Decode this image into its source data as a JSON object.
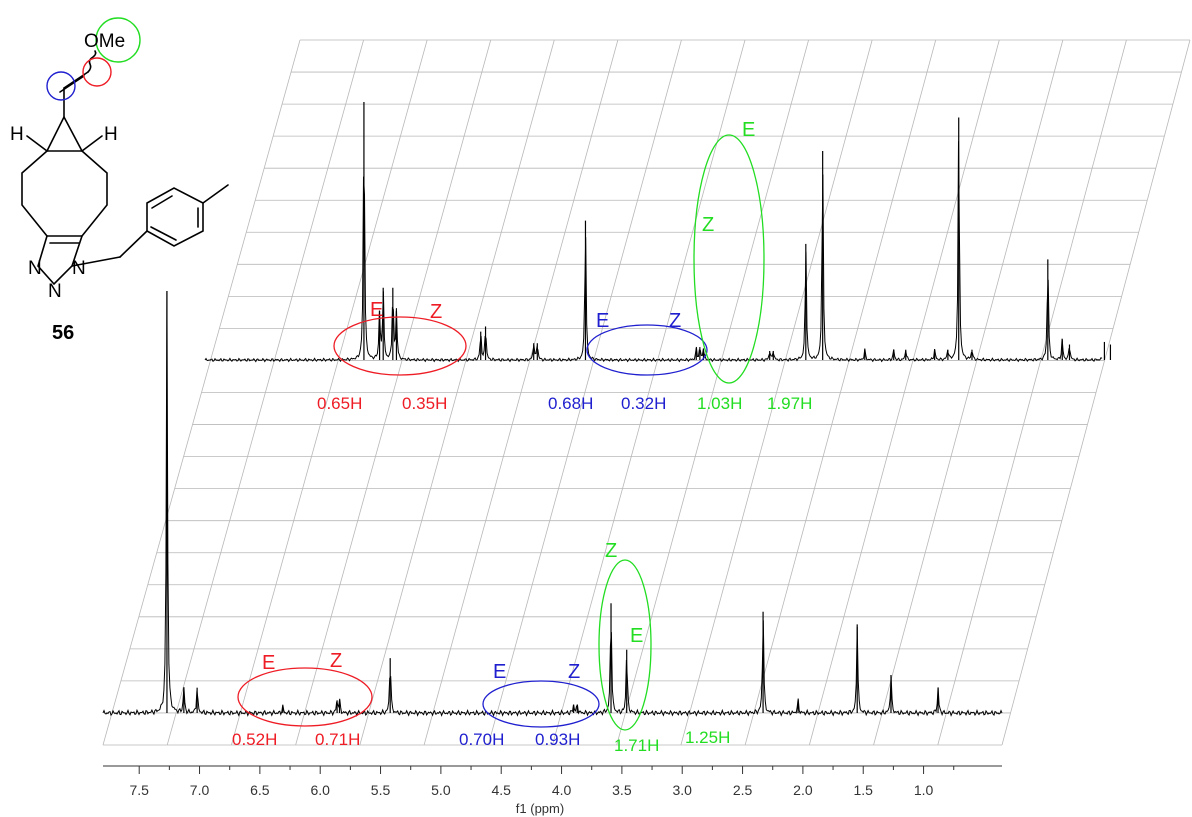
{
  "colors": {
    "red": "#ee1c25",
    "blue": "#1f1fcf",
    "green": "#22dd22",
    "spectrum": "#000000",
    "grid": "#b8b8b8"
  },
  "molecule": {
    "compound_number": "56",
    "labels": {
      "ome": "OMe",
      "h_left": "H",
      "h_right": "H",
      "n1": "N",
      "n2": "N",
      "n3": "N"
    }
  },
  "chart_data": {
    "type": "line",
    "title": "",
    "xlabel": "f1 (ppm)",
    "ylabel": "",
    "x_reversed": true,
    "xlim": [
      7.8,
      0.35
    ],
    "x_ticks": [
      "7.5",
      "7.0",
      "6.5",
      "6.0",
      "5.5",
      "5.0",
      "4.5",
      "4.0",
      "3.5",
      "3.0",
      "2.5",
      "2.0",
      "1.5",
      "1.0"
    ],
    "grid": true,
    "series": [
      {
        "peaks": [
          {
            "ppm": 6.48,
            "height": 1.0
          },
          {
            "ppm": 6.35,
            "height": 0.19
          },
          {
            "ppm": 6.32,
            "height": 0.28
          },
          {
            "ppm": 6.24,
            "height": 0.28
          },
          {
            "ppm": 6.21,
            "height": 0.19
          },
          {
            "ppm": 5.51,
            "height": 0.11
          },
          {
            "ppm": 5.47,
            "height": 0.13
          },
          {
            "ppm": 5.07,
            "height": 0.065
          },
          {
            "ppm": 5.04,
            "height": 0.065
          },
          {
            "ppm": 4.64,
            "height": 0.54
          },
          {
            "ppm": 3.72,
            "height": 0.045
          },
          {
            "ppm": 3.69,
            "height": 0.05
          },
          {
            "ppm": 3.66,
            "height": 0.045
          },
          {
            "ppm": 3.11,
            "height": 0.035
          },
          {
            "ppm": 3.08,
            "height": 0.035
          },
          {
            "ppm": 2.81,
            "height": 0.45
          },
          {
            "ppm": 2.67,
            "height": 0.81
          },
          {
            "ppm": 2.32,
            "height": 0.04
          },
          {
            "ppm": 2.08,
            "height": 0.04
          },
          {
            "ppm": 1.98,
            "height": 0.04
          },
          {
            "ppm": 1.74,
            "height": 0.04
          },
          {
            "ppm": 1.63,
            "height": 0.04
          },
          {
            "ppm": 1.54,
            "height": 0.94
          },
          {
            "ppm": 1.43,
            "height": 0.04
          },
          {
            "ppm": 0.8,
            "height": 0.39
          },
          {
            "ppm": 0.68,
            "height": 0.08
          },
          {
            "ppm": 0.62,
            "height": 0.06
          },
          {
            "ppm": 0.33,
            "height": 0.07
          },
          {
            "ppm": 0.28,
            "height": 0.06
          }
        ],
        "annotations": [
          {
            "text": "E",
            "ppm": 5.55,
            "color": "red"
          },
          {
            "text": "Z",
            "ppm": 5.03,
            "color": "red"
          },
          {
            "text": "E",
            "ppm": 3.75,
            "color": "blue"
          },
          {
            "text": "Z",
            "ppm": 3.14,
            "color": "blue"
          },
          {
            "text": "Z",
            "ppm": 2.85,
            "color": "green"
          },
          {
            "text": "E",
            "ppm": 2.55,
            "color": "green"
          }
        ],
        "integrals": [
          {
            "text": "0.65H",
            "color": "red"
          },
          {
            "text": "0.35H",
            "color": "red"
          },
          {
            "text": "0.68H",
            "color": "blue"
          },
          {
            "text": "0.32H",
            "color": "blue"
          },
          {
            "text": "1.03H",
            "color": "green"
          },
          {
            "text": "1.97H",
            "color": "green"
          }
        ]
      },
      {
        "peaks": [
          {
            "ppm": 7.27,
            "height": 1.0
          },
          {
            "ppm": 7.13,
            "height": 0.06
          },
          {
            "ppm": 7.02,
            "height": 0.06
          },
          {
            "ppm": 6.31,
            "height": 0.015
          },
          {
            "ppm": 5.86,
            "height": 0.03
          },
          {
            "ppm": 5.84,
            "height": 0.03
          },
          {
            "ppm": 5.42,
            "height": 0.13
          },
          {
            "ppm": 3.9,
            "height": 0.02
          },
          {
            "ppm": 3.87,
            "height": 0.02
          },
          {
            "ppm": 3.59,
            "height": 0.26
          },
          {
            "ppm": 3.46,
            "height": 0.15
          },
          {
            "ppm": 2.33,
            "height": 0.24
          },
          {
            "ppm": 2.04,
            "height": 0.03
          },
          {
            "ppm": 1.55,
            "height": 0.21
          },
          {
            "ppm": 1.27,
            "height": 0.09
          },
          {
            "ppm": 0.88,
            "height": 0.06
          }
        ],
        "annotations": [
          {
            "text": "E",
            "ppm": 6.35,
            "color": "red"
          },
          {
            "text": "Z",
            "ppm": 5.84,
            "color": "red"
          },
          {
            "text": "E",
            "ppm": 4.47,
            "color": "blue"
          },
          {
            "text": "Z",
            "ppm": 3.94,
            "color": "blue"
          },
          {
            "text": "Z",
            "ppm": 3.55,
            "color": "green"
          },
          {
            "text": "E",
            "ppm": 3.35,
            "color": "green"
          }
        ],
        "integrals": [
          {
            "text": "0.52H",
            "color": "red"
          },
          {
            "text": "0.71H",
            "color": "red"
          },
          {
            "text": "0.70H",
            "color": "blue"
          },
          {
            "text": "0.93H",
            "color": "blue"
          },
          {
            "text": "1.71H",
            "color": "green"
          },
          {
            "text": "1.25H",
            "color": "green"
          }
        ]
      }
    ]
  }
}
